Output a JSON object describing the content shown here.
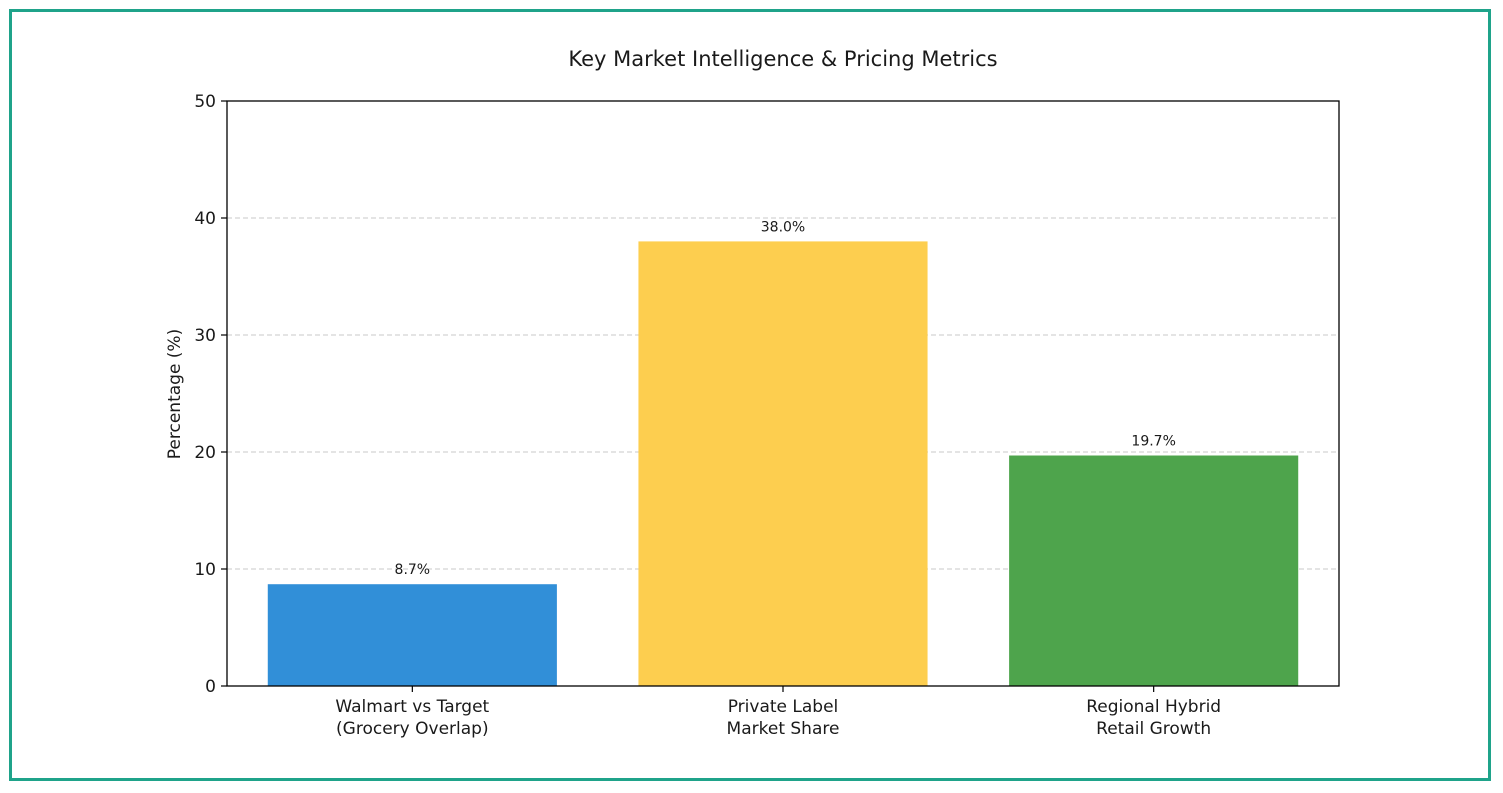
{
  "chart_data": {
    "type": "bar",
    "title": "Key Market Intelligence & Pricing Metrics",
    "xlabel": "",
    "ylabel": "Percentage (%)",
    "ylim": [
      0,
      50
    ],
    "yticks": [
      0,
      10,
      20,
      30,
      40,
      50
    ],
    "grid": true,
    "categories": [
      [
        "Walmart vs Target",
        "(Grocery Overlap)"
      ],
      [
        "Private Label",
        "Market Share"
      ],
      [
        "Regional Hybrid",
        "Retail Growth"
      ]
    ],
    "values": [
      8.7,
      38.0,
      19.7
    ],
    "data_labels": [
      "8.7%",
      "38.0%",
      "19.7%"
    ],
    "colors": [
      "#318fd8",
      "#fdce4f",
      "#4ea44c"
    ]
  },
  "frame": {
    "border_color": "#1fa38a"
  }
}
